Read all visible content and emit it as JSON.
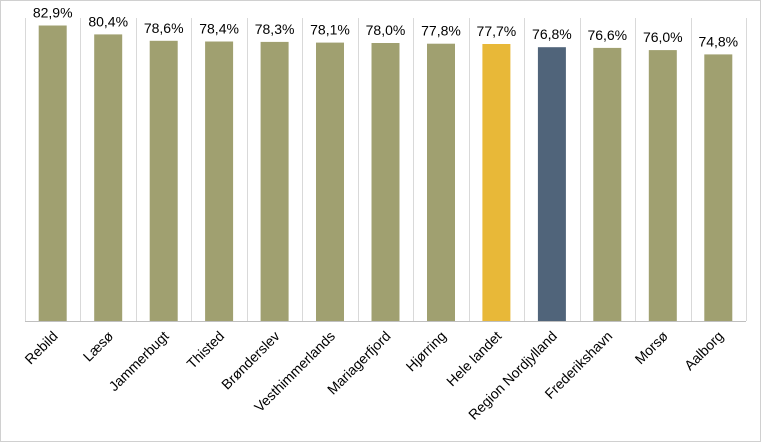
{
  "chart_data": {
    "type": "bar",
    "title": "",
    "xlabel": "",
    "ylabel": "",
    "ylim": [
      0,
      85
    ],
    "categories": [
      "Rebild",
      "Læsø",
      "Jammerbugt",
      "Thisted",
      "Brønderslev",
      "Vesthimmerlands",
      "Mariagerfjord",
      "Hjørring",
      "Hele landet",
      "Region Nordjylland",
      "Frederikshavn",
      "Morsø",
      "Aalborg"
    ],
    "values": [
      82.9,
      80.4,
      78.6,
      78.4,
      78.3,
      78.1,
      78.0,
      77.8,
      77.7,
      76.8,
      76.6,
      76.0,
      74.8
    ],
    "value_labels": [
      "82,9%",
      "80,4%",
      "78,6%",
      "78,4%",
      "78,3%",
      "78,1%",
      "78,0%",
      "77,8%",
      "77,7%",
      "76,8%",
      "76,6%",
      "76,0%",
      "74,8%"
    ],
    "colors": [
      "#a0a070",
      "#a0a070",
      "#a0a070",
      "#a0a070",
      "#a0a070",
      "#a0a070",
      "#a0a070",
      "#a0a070",
      "#e8b838",
      "#50647a",
      "#a0a070",
      "#a0a070",
      "#a0a070"
    ],
    "grid": "vertical-separators",
    "legend": "none"
  }
}
